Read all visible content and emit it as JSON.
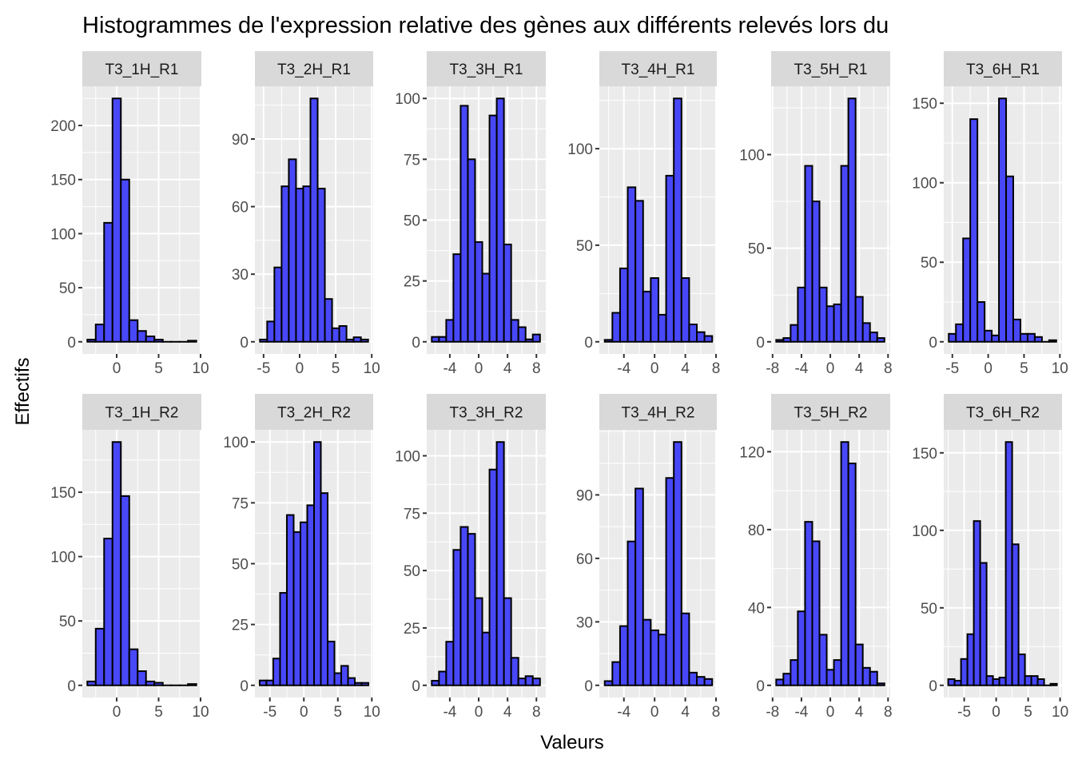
{
  "chart_data": {
    "type": "bar",
    "subtype": "histogram-facets",
    "title": "Histogrammes de l'expression relative des gènes aux différents relevés lors du",
    "xlabel": "Valeurs",
    "ylabel": "Effectifs",
    "grid": true,
    "colors": {
      "bar_fill": "#4848f8",
      "bar_stroke": "#000000",
      "panel_bg": "#ebebeb",
      "strip_bg": "#d9d9d9",
      "grid": "#ffffff"
    },
    "facets": [
      {
        "label": "T3_1H_R1",
        "binwidth": 1,
        "first_center": -3,
        "xlim": [
          -4.1,
          10.1
        ],
        "xticks": [
          0,
          5,
          10
        ],
        "yticks": [
          0,
          50,
          100,
          150,
          200
        ],
        "counts": [
          2,
          16,
          110,
          225,
          150,
          20,
          10,
          5,
          2,
          0,
          0,
          0,
          1
        ]
      },
      {
        "label": "T3_2H_R1",
        "binwidth": 1,
        "first_center": -5,
        "xlim": [
          -6.2,
          10.2
        ],
        "xticks": [
          -5,
          0,
          5,
          10
        ],
        "yticks": [
          0,
          30,
          60,
          90
        ],
        "counts": [
          1,
          9,
          33,
          69,
          81,
          68,
          69,
          108,
          68,
          19,
          6,
          7,
          1,
          2,
          1
        ]
      },
      {
        "label": "T3_3H_R1",
        "binwidth": 1,
        "first_center": -6,
        "xlim": [
          -7.2,
          9.3
        ],
        "xticks": [
          -4,
          0,
          4,
          8
        ],
        "yticks": [
          0,
          25,
          50,
          75,
          100
        ],
        "counts": [
          2,
          2,
          9,
          36,
          97,
          75,
          41,
          28,
          93,
          100,
          40,
          9,
          6,
          1,
          3
        ]
      },
      {
        "label": "T3_4H_R1",
        "binwidth": 1,
        "first_center": -6,
        "xlim": [
          -7.2,
          8.1
        ],
        "xticks": [
          -4,
          0,
          4,
          8
        ],
        "yticks": [
          0,
          50,
          100
        ],
        "counts": [
          1,
          15,
          38,
          80,
          73,
          26,
          33,
          14,
          86,
          126,
          33,
          9,
          5,
          3
        ]
      },
      {
        "label": "T3_5H_R1",
        "binwidth": 1,
        "first_center": -7,
        "xlim": [
          -8.2,
          8.3
        ],
        "xticks": [
          -8,
          -4,
          0,
          4,
          8
        ],
        "yticks": [
          0,
          50,
          100
        ],
        "counts": [
          1,
          2,
          9,
          29,
          94,
          75,
          29,
          19,
          20,
          94,
          130,
          24,
          10,
          5,
          2
        ]
      },
      {
        "label": "T3_6H_R1",
        "binwidth": 1,
        "first_center": -5,
        "xlim": [
          -6.2,
          10.3
        ],
        "xticks": [
          -5,
          0,
          5,
          10
        ],
        "yticks": [
          0,
          50,
          100,
          150
        ],
        "counts": [
          5,
          11,
          65,
          140,
          25,
          7,
          4,
          153,
          104,
          14,
          5,
          5,
          3,
          0,
          1
        ]
      },
      {
        "label": "T3_1H_R2",
        "binwidth": 1,
        "first_center": -3,
        "xlim": [
          -4.1,
          10.1
        ],
        "xticks": [
          0,
          5,
          10
        ],
        "yticks": [
          0,
          50,
          100,
          150
        ],
        "counts": [
          3,
          44,
          114,
          189,
          147,
          28,
          11,
          3,
          2,
          0,
          0,
          0,
          1
        ]
      },
      {
        "label": "T3_2H_R2",
        "binwidth": 1,
        "first_center": -6,
        "xlim": [
          -7.2,
          10.2
        ],
        "xticks": [
          -5,
          0,
          5,
          10
        ],
        "yticks": [
          0,
          25,
          50,
          75,
          100
        ],
        "counts": [
          2,
          2,
          11,
          38,
          70,
          63,
          67,
          74,
          100,
          79,
          18,
          5,
          8,
          3,
          1,
          1
        ]
      },
      {
        "label": "T3_3H_R2",
        "binwidth": 1,
        "first_center": -6,
        "xlim": [
          -7.2,
          9.3
        ],
        "xticks": [
          -4,
          0,
          4,
          8
        ],
        "yticks": [
          0,
          25,
          50,
          75,
          100
        ],
        "counts": [
          2,
          6,
          19,
          59,
          69,
          66,
          38,
          23,
          94,
          106,
          38,
          12,
          3,
          4,
          3
        ]
      },
      {
        "label": "T3_4H_R2",
        "binwidth": 1,
        "first_center": -6,
        "xlim": [
          -7.2,
          8.1
        ],
        "xticks": [
          -4,
          0,
          4,
          8
        ],
        "yticks": [
          0,
          30,
          60,
          90
        ],
        "counts": [
          2,
          11,
          28,
          68,
          93,
          31,
          26,
          24,
          98,
          115,
          34,
          6,
          4,
          3
        ]
      },
      {
        "label": "T3_5H_R2",
        "binwidth": 1,
        "first_center": -7,
        "xlim": [
          -8.2,
          8.3
        ],
        "xticks": [
          -8,
          -4,
          0,
          4,
          8
        ],
        "yticks": [
          0,
          40,
          80,
          120
        ],
        "counts": [
          3,
          6,
          13,
          38,
          84,
          74,
          26,
          8,
          13,
          125,
          114,
          21,
          9,
          7,
          1
        ]
      },
      {
        "label": "T3_6H_R2",
        "binwidth": 1,
        "first_center": -7,
        "xlim": [
          -8.2,
          10.3
        ],
        "xticks": [
          -5,
          0,
          5,
          10
        ],
        "yticks": [
          0,
          50,
          100,
          150
        ],
        "counts": [
          4,
          3,
          17,
          33,
          106,
          79,
          6,
          4,
          5,
          157,
          91,
          20,
          6,
          6,
          4,
          0,
          1
        ]
      }
    ]
  }
}
